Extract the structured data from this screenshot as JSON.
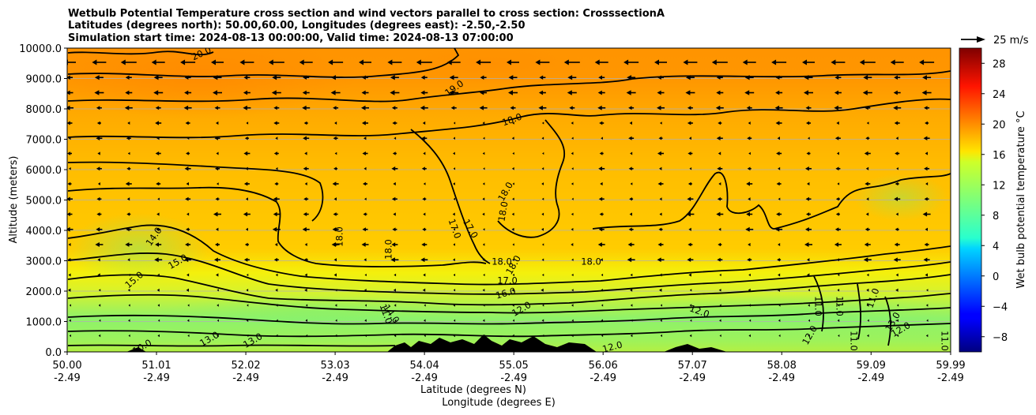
{
  "chart_data": {
    "type": "heatmap",
    "title_lines": [
      "Wetbulb Potential Temperature cross section and wind vectors parallel to cross section: CrosssectionA",
      "Latitudes (degrees north): 50.00,60.00, Longitudes (degrees east): -2.50,-2.50",
      "Simulation start time: 2024-08-13 00:00:00, Valid time: 2024-08-13 07:00:00"
    ],
    "xlabel_lines": [
      "Latitude (degrees N)",
      "Longitude (degrees E)"
    ],
    "ylabel": "Altitude (meters)",
    "x_ticks": [
      {
        "lat": "50.00",
        "lon": "-2.49"
      },
      {
        "lat": "51.01",
        "lon": "-2.49"
      },
      {
        "lat": "52.02",
        "lon": "-2.49"
      },
      {
        "lat": "53.03",
        "lon": "-2.49"
      },
      {
        "lat": "54.04",
        "lon": "-2.49"
      },
      {
        "lat": "55.05",
        "lon": "-2.49"
      },
      {
        "lat": "56.06",
        "lon": "-2.49"
      },
      {
        "lat": "57.07",
        "lon": "-2.49"
      },
      {
        "lat": "58.08",
        "lon": "-2.49"
      },
      {
        "lat": "59.09",
        "lon": "-2.49"
      },
      {
        "lat": "59.99",
        "lon": "-2.49"
      }
    ],
    "x_range": [
      50.0,
      59.99
    ],
    "y_ticks": [
      "0.0",
      "1000.0",
      "2000.0",
      "3000.0",
      "4000.0",
      "5000.0",
      "6000.0",
      "7000.0",
      "8000.0",
      "9000.0",
      "10000.0"
    ],
    "ylim": [
      0,
      10000
    ],
    "grid": "horizontal",
    "colorbar": {
      "label": "Wet bulb potential temperature °C",
      "ticks": [
        "−8",
        "−4",
        "0",
        "4",
        "8",
        "12",
        "16",
        "20",
        "24",
        "28"
      ],
      "range": [
        -10,
        30
      ],
      "colormap": "jet"
    },
    "quiver_key_label": "25 m/s",
    "wind_direction": "westward (toward lower latitude) at most levels",
    "field_summary": [
      {
        "altitude": [
          0,
          1000
        ],
        "value_c": 12,
        "description": "greenish near-surface layer, 11-13 °C"
      },
      {
        "altitude": [
          1000,
          2500
        ],
        "value_c": 14,
        "description": "yellow-green transition with tightly packed contours"
      },
      {
        "altitude": [
          2500,
          7000
        ],
        "value_c": 18,
        "description": "orange-yellow mid troposphere, 17-18 °C"
      },
      {
        "altitude": [
          7000,
          10000
        ],
        "value_c": 19.5,
        "description": "orange upper layer, up to 20 °C near 51°N"
      }
    ],
    "contour_labels": [
      "20.0",
      "19.0",
      "18.0",
      "18.0",
      "18.0",
      "18.0",
      "18.0",
      "18.0",
      "18.0",
      "18.0",
      "17.0",
      "17.0",
      "17.0",
      "16.0",
      "15.0",
      "15.0",
      "14.0",
      "14.0",
      "13.0",
      "13.0",
      "13.0",
      "12.0",
      "12.0",
      "12.0",
      "12.0",
      "12.0",
      "11.0",
      "11.0",
      "11.0",
      "11.0",
      "11.0",
      "11.0",
      "10.0"
    ],
    "terrain": "black orography up to about 600 m between 54°N and 56°N"
  }
}
